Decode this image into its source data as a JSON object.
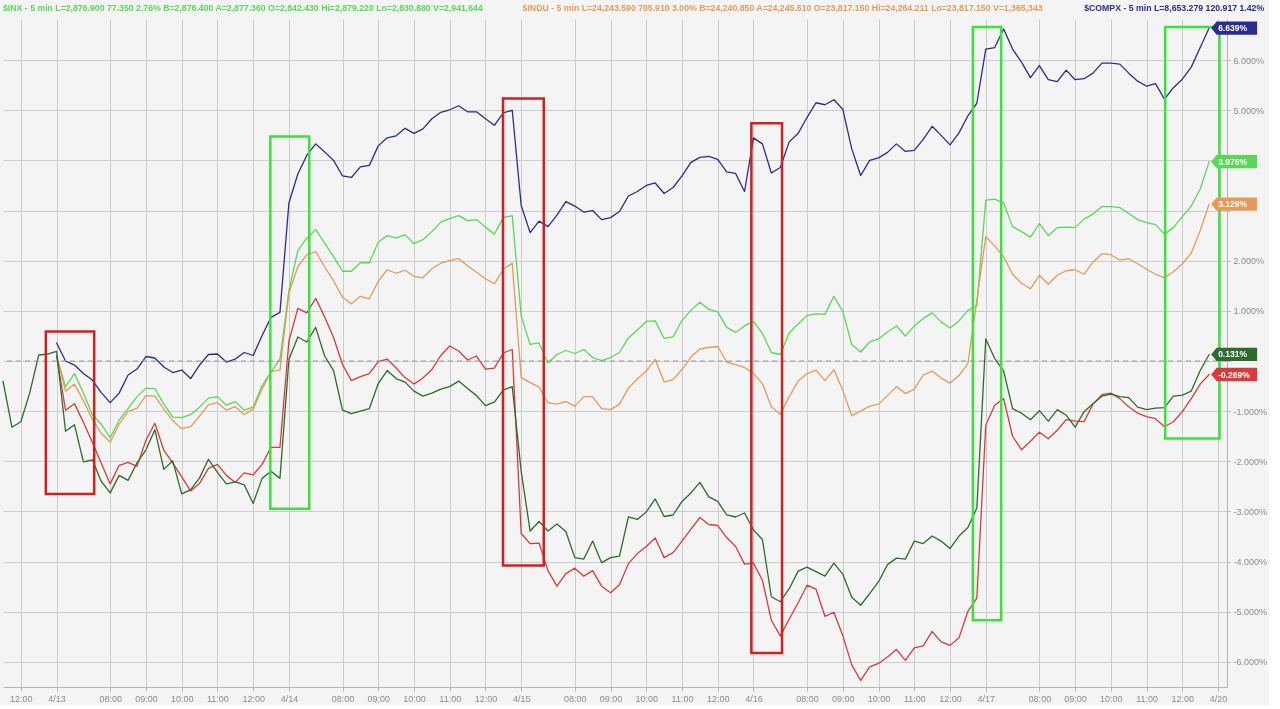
{
  "chart_data": {
    "type": "line",
    "legend": "top",
    "grid": true,
    "categories": [
      null,
      null,
      "12:00",
      null,
      null,
      null,
      "4/13",
      null,
      null,
      null,
      null,
      null,
      "08:00",
      null,
      null,
      null,
      "09:00",
      null,
      null,
      null,
      "10:00",
      null,
      null,
      null,
      "11:00",
      null,
      null,
      null,
      "12:00",
      null,
      null,
      null,
      "4/14",
      null,
      null,
      null,
      null,
      null,
      "08:00",
      null,
      null,
      null,
      "09:00",
      null,
      null,
      null,
      "10:00",
      null,
      null,
      null,
      "11:00",
      null,
      null,
      null,
      "12:00",
      null,
      null,
      null,
      "4/15",
      null,
      null,
      null,
      null,
      null,
      "08:00",
      null,
      null,
      null,
      "09:00",
      null,
      null,
      null,
      "10:00",
      null,
      null,
      null,
      "11:00",
      null,
      null,
      null,
      "12:00",
      null,
      null,
      null,
      "4/16",
      null,
      null,
      null,
      null,
      null,
      "08:00",
      null,
      null,
      null,
      "09:00",
      null,
      null,
      null,
      "10:00",
      null,
      null,
      null,
      "11:00",
      null,
      null,
      null,
      "12:00",
      null,
      null,
      null,
      "4/17",
      null,
      null,
      null,
      null,
      null,
      "08:00",
      null,
      null,
      null,
      "09:00",
      null,
      null,
      null,
      "10:00",
      null,
      null,
      null,
      "11:00",
      null,
      null,
      null,
      "12:00",
      null,
      null,
      null,
      "4/20",
      null
    ],
    "ylim": [
      -6.5,
      6.82
    ],
    "yticks": [
      {
        "value": 6,
        "label": "6.000%"
      },
      {
        "value": 5,
        "label": "5.000%"
      },
      {
        "value": 4,
        "label": null
      },
      {
        "value": 3,
        "label": null
      },
      {
        "value": 2,
        "label": "2.000%"
      },
      {
        "value": 1,
        "label": "1.000%"
      },
      {
        "value": 0,
        "label": null
      },
      {
        "value": -1,
        "label": "-1.000%"
      },
      {
        "value": -2,
        "label": "-2.000%"
      },
      {
        "value": -3,
        "label": "-3.000%"
      },
      {
        "value": -4,
        "label": "-4.000%"
      },
      {
        "value": -5,
        "label": "-5.000%"
      },
      {
        "value": -6,
        "label": "-6.000%"
      }
    ],
    "series": [
      {
        "name": "$INX - 5 min L=2,876.900 77.350 2.76% B=2,876.400 A=2,877.360 O=2,842.430 Hi=2,879.220 Lo=2,830.880 V=2,941,644",
        "color": "#58d858",
        "values": [
          null,
          null,
          null,
          null,
          null,
          null,
          0.1,
          -0.51,
          -0.25,
          -0.64,
          -1.07,
          -1.26,
          -1.53,
          -1.18,
          -0.95,
          -0.71,
          -0.54,
          -0.55,
          -0.86,
          -1.12,
          -1.13,
          -1.07,
          -0.92,
          -0.74,
          -0.71,
          -0.88,
          -0.81,
          -0.98,
          -0.92,
          -0.49,
          -0.22,
          0.04,
          1.4,
          2.2,
          2.45,
          2.62,
          2.35,
          2.08,
          1.79,
          1.79,
          1.96,
          1.96,
          2.37,
          2.5,
          2.45,
          2.52,
          2.34,
          2.42,
          2.58,
          2.77,
          2.84,
          2.9,
          2.8,
          2.82,
          2.67,
          2.53,
          2.86,
          2.9,
          0.9,
          0.33,
          0.36,
          -0.04,
          0.13,
          0.21,
          0.15,
          0.23,
          0.07,
          0.01,
          0.07,
          0.17,
          0.46,
          0.62,
          0.79,
          0.8,
          0.45,
          0.48,
          0.81,
          1.01,
          1.17,
          1.03,
          0.98,
          0.67,
          0.57,
          0.7,
          0.79,
          0.55,
          0.17,
          0.13,
          0.56,
          0.74,
          0.91,
          0.94,
          0.93,
          1.29,
          0.99,
          0.33,
          0.18,
          0.38,
          0.44,
          0.58,
          0.7,
          0.5,
          0.7,
          0.85,
          0.96,
          0.78,
          0.66,
          0.8,
          1.01,
          1.1,
          3.21,
          3.23,
          3.15,
          2.68,
          2.58,
          2.47,
          2.74,
          2.5,
          2.66,
          2.67,
          2.66,
          2.83,
          2.93,
          3.08,
          3.08,
          3.06,
          2.94,
          2.82,
          2.76,
          2.72,
          2.53,
          2.66,
          2.88,
          3.09,
          3.43,
          3.976,
          null,
          null
        ],
        "value_labels": [
          null,
          null,
          null,
          null,
          null,
          null,
          null,
          null,
          null,
          null,
          null,
          null,
          null,
          null,
          null,
          null,
          null,
          null,
          null,
          null,
          null,
          null,
          null,
          null,
          null,
          null,
          null,
          null,
          null,
          null,
          null,
          null,
          null,
          null,
          null,
          null,
          null,
          null,
          null,
          null,
          null,
          null,
          null,
          null,
          null,
          null,
          null,
          null,
          null,
          null,
          null,
          null,
          null,
          null,
          null,
          null,
          null,
          null,
          null,
          null,
          null,
          null,
          null,
          null,
          null,
          null,
          null,
          null,
          null,
          null,
          null,
          null,
          null,
          null,
          null,
          null,
          null,
          null,
          null,
          null,
          null,
          null,
          null,
          null,
          null,
          null,
          null,
          null,
          null,
          null,
          null,
          null,
          null,
          null,
          null,
          null,
          null,
          null,
          null,
          null,
          null,
          null,
          null,
          null,
          null,
          null,
          null,
          null,
          null,
          null,
          null,
          null,
          null,
          null,
          null,
          null,
          null,
          null,
          null,
          null,
          null,
          null,
          null,
          null,
          null,
          null,
          null,
          null,
          null,
          null,
          null,
          null,
          null,
          null,
          null,
          "3.976%",
          null,
          null
        ]
      },
      {
        "name": "$INDU - 5 min L=24,243.590 705.910 3.00% B=24,240.850 A=24,245.510 O=23,817.150 Hi=24,264.211 Lo=23,817.150 V=1,365,343",
        "color": "#e59a5b",
        "values": [
          null,
          null,
          null,
          null,
          null,
          null,
          0.1,
          -0.6,
          -0.46,
          -0.79,
          -1.16,
          -1.44,
          -1.62,
          -1.26,
          -1.01,
          -0.94,
          -0.69,
          -0.7,
          -0.96,
          -1.19,
          -1.35,
          -1.31,
          -1.1,
          -0.87,
          -0.83,
          -0.98,
          -0.91,
          -1.07,
          -0.96,
          -0.56,
          -0.21,
          -0.18,
          1.35,
          1.88,
          2.12,
          2.18,
          1.88,
          1.6,
          1.27,
          1.14,
          1.29,
          1.24,
          1.59,
          1.82,
          1.75,
          1.81,
          1.69,
          1.66,
          1.84,
          1.95,
          2.0,
          2.04,
          1.9,
          1.77,
          1.64,
          1.54,
          1.83,
          1.95,
          -0.33,
          -0.43,
          -0.52,
          -0.83,
          -0.86,
          -0.81,
          -0.9,
          -0.71,
          -0.71,
          -0.95,
          -0.97,
          -0.86,
          -0.54,
          -0.36,
          -0.2,
          0.03,
          -0.42,
          -0.37,
          -0.17,
          0.08,
          0.24,
          0.27,
          0.29,
          -0.02,
          -0.07,
          -0.13,
          -0.25,
          -0.45,
          -0.91,
          -1.06,
          -0.71,
          -0.4,
          -0.25,
          -0.18,
          -0.39,
          -0.17,
          -0.59,
          -1.09,
          -1.0,
          -0.9,
          -0.86,
          -0.69,
          -0.51,
          -0.65,
          -0.56,
          -0.28,
          -0.2,
          -0.34,
          -0.44,
          -0.29,
          -0.05,
          1.22,
          2.48,
          2.29,
          2.08,
          1.73,
          1.55,
          1.44,
          1.71,
          1.53,
          1.71,
          1.8,
          1.82,
          1.73,
          1.97,
          2.14,
          2.12,
          2.01,
          2.04,
          1.94,
          1.83,
          1.73,
          1.66,
          1.78,
          1.94,
          2.15,
          2.6,
          3.129,
          null,
          null
        ],
        "value_labels": [
          null,
          null,
          null,
          null,
          null,
          null,
          null,
          null,
          null,
          null,
          null,
          null,
          null,
          null,
          null,
          null,
          null,
          null,
          null,
          null,
          null,
          null,
          null,
          null,
          null,
          null,
          null,
          null,
          null,
          null,
          null,
          null,
          null,
          null,
          null,
          null,
          null,
          null,
          null,
          null,
          null,
          null,
          null,
          null,
          null,
          null,
          null,
          null,
          null,
          null,
          null,
          null,
          null,
          null,
          null,
          null,
          null,
          null,
          null,
          null,
          null,
          null,
          null,
          null,
          null,
          null,
          null,
          null,
          null,
          null,
          null,
          null,
          null,
          null,
          null,
          null,
          null,
          null,
          null,
          null,
          null,
          null,
          null,
          null,
          null,
          null,
          null,
          null,
          null,
          null,
          null,
          null,
          null,
          null,
          null,
          null,
          null,
          null,
          null,
          null,
          null,
          null,
          null,
          null,
          null,
          null,
          null,
          null,
          null,
          null,
          null,
          null,
          null,
          null,
          null,
          null,
          null,
          null,
          null,
          null,
          null,
          null,
          null,
          null,
          null,
          null,
          null,
          null,
          null,
          null,
          null,
          null,
          null,
          null,
          null,
          "3.129%",
          null,
          null
        ]
      },
      {
        "name": "$COMPX - 5 min L=8,653.279 120.917 1.42%",
        "color": "#2c2c8e",
        "values": [
          null,
          null,
          null,
          null,
          null,
          null,
          0.36,
          0.0,
          -0.08,
          -0.25,
          -0.38,
          -0.63,
          -0.83,
          -0.64,
          -0.28,
          -0.16,
          0.09,
          0.06,
          -0.12,
          -0.23,
          -0.18,
          -0.35,
          -0.08,
          0.13,
          0.14,
          -0.02,
          0.04,
          0.17,
          0.11,
          0.51,
          0.87,
          0.97,
          3.15,
          3.73,
          4.1,
          4.33,
          4.17,
          4.0,
          3.69,
          3.66,
          3.87,
          3.9,
          4.29,
          4.45,
          4.49,
          4.64,
          4.54,
          4.63,
          4.83,
          4.96,
          5.01,
          5.09,
          4.97,
          4.97,
          4.83,
          4.7,
          4.95,
          5.0,
          3.1,
          2.56,
          2.79,
          2.68,
          2.91,
          3.18,
          3.09,
          2.97,
          3.0,
          2.82,
          2.86,
          2.98,
          3.29,
          3.38,
          3.5,
          3.55,
          3.34,
          3.46,
          3.69,
          3.96,
          4.06,
          4.08,
          4.02,
          3.77,
          3.74,
          3.38,
          4.45,
          4.33,
          3.75,
          3.86,
          4.37,
          4.54,
          4.86,
          5.15,
          5.11,
          5.21,
          5.02,
          4.23,
          3.7,
          4.0,
          4.05,
          4.16,
          4.33,
          4.18,
          4.2,
          4.42,
          4.68,
          4.5,
          4.31,
          4.55,
          4.89,
          5.14,
          6.22,
          6.25,
          6.62,
          6.22,
          5.96,
          5.65,
          5.89,
          5.61,
          5.57,
          5.8,
          5.61,
          5.63,
          5.74,
          5.94,
          5.94,
          5.92,
          5.74,
          5.58,
          5.48,
          5.53,
          5.22,
          5.45,
          5.62,
          5.86,
          6.25,
          6.639,
          null,
          null
        ],
        "value_labels": [
          null,
          null,
          null,
          null,
          null,
          null,
          null,
          null,
          null,
          null,
          null,
          null,
          null,
          null,
          null,
          null,
          null,
          null,
          null,
          null,
          null,
          null,
          null,
          null,
          null,
          null,
          null,
          null,
          null,
          null,
          null,
          null,
          null,
          null,
          null,
          null,
          null,
          null,
          null,
          null,
          null,
          null,
          null,
          null,
          null,
          null,
          null,
          null,
          null,
          null,
          null,
          null,
          null,
          null,
          null,
          null,
          null,
          null,
          null,
          null,
          null,
          null,
          null,
          null,
          null,
          null,
          null,
          null,
          null,
          null,
          null,
          null,
          null,
          null,
          null,
          null,
          null,
          null,
          null,
          null,
          null,
          null,
          null,
          null,
          null,
          null,
          null,
          null,
          null,
          null,
          null,
          null,
          null,
          null,
          null,
          null,
          null,
          null,
          null,
          null,
          null,
          null,
          null,
          null,
          null,
          null,
          null,
          null,
          null,
          null,
          null,
          null,
          null,
          null,
          null,
          null,
          null,
          null,
          null,
          null,
          null,
          null,
          null,
          null,
          null,
          null,
          null,
          null,
          null,
          null,
          null,
          null,
          null,
          null,
          null,
          "6.639%",
          null,
          null
        ]
      },
      {
        "color": "#d63c3c",
        "values": [
          null,
          null,
          null,
          null,
          null,
          null,
          0.1,
          -0.98,
          -0.85,
          -1.22,
          -1.62,
          -2.04,
          -2.45,
          -2.08,
          -2.02,
          -2.1,
          -1.58,
          -1.24,
          -1.78,
          -2.03,
          -2.31,
          -2.59,
          -2.44,
          -2.14,
          -2.06,
          -2.28,
          -2.42,
          -2.23,
          -2.27,
          -2.06,
          -1.72,
          -1.72,
          0.4,
          1.05,
          0.96,
          1.25,
          0.88,
          0.47,
          -0.07,
          -0.39,
          -0.31,
          -0.25,
          -0.01,
          0.04,
          -0.14,
          -0.33,
          -0.46,
          -0.34,
          -0.17,
          0.11,
          0.3,
          0.2,
          0.02,
          0.1,
          -0.16,
          -0.14,
          0.16,
          0.23,
          -3.44,
          -3.64,
          -3.63,
          -4.18,
          -4.49,
          -4.24,
          -4.13,
          -4.29,
          -4.18,
          -4.49,
          -4.62,
          -4.46,
          -4.04,
          -3.84,
          -3.7,
          -3.53,
          -3.92,
          -3.82,
          -3.59,
          -3.35,
          -3.12,
          -3.26,
          -3.28,
          -3.52,
          -3.7,
          -4.05,
          -4.03,
          -4.37,
          -5.17,
          -5.48,
          -5.15,
          -4.82,
          -4.47,
          -4.55,
          -5.09,
          -5.01,
          -5.48,
          -6.06,
          -6.37,
          -6.1,
          -6.03,
          -5.9,
          -5.75,
          -5.97,
          -5.72,
          -5.68,
          -5.39,
          -5.6,
          -5.67,
          -5.52,
          -4.99,
          -4.73,
          -1.28,
          -0.88,
          -0.75,
          -1.5,
          -1.77,
          -1.6,
          -1.42,
          -1.55,
          -1.38,
          -1.17,
          -1.2,
          -1.21,
          -0.86,
          -0.67,
          -0.64,
          -0.75,
          -0.91,
          -1.04,
          -1.11,
          -1.15,
          -1.31,
          -1.21,
          -1.01,
          -0.75,
          -0.46,
          -0.269,
          null,
          null
        ],
        "value_labels": [
          null,
          null,
          null,
          null,
          null,
          null,
          null,
          null,
          null,
          null,
          null,
          null,
          null,
          null,
          null,
          null,
          null,
          null,
          null,
          null,
          null,
          null,
          null,
          null,
          null,
          null,
          null,
          null,
          null,
          null,
          null,
          null,
          null,
          null,
          null,
          null,
          null,
          null,
          null,
          null,
          null,
          null,
          null,
          null,
          null,
          null,
          null,
          null,
          null,
          null,
          null,
          null,
          null,
          null,
          null,
          null,
          null,
          null,
          null,
          null,
          null,
          null,
          null,
          null,
          null,
          null,
          null,
          null,
          null,
          null,
          null,
          null,
          null,
          null,
          null,
          null,
          null,
          null,
          null,
          null,
          null,
          null,
          null,
          null,
          null,
          null,
          null,
          null,
          null,
          null,
          null,
          null,
          null,
          null,
          null,
          null,
          null,
          null,
          null,
          null,
          null,
          null,
          null,
          null,
          null,
          null,
          null,
          null,
          null,
          null,
          null,
          null,
          null,
          null,
          null,
          null,
          null,
          null,
          null,
          null,
          null,
          null,
          null,
          null,
          null,
          null,
          null,
          null,
          null,
          null,
          null,
          null,
          null,
          null,
          null,
          "-0.269%",
          null,
          null
        ]
      },
      {
        "color": "#2e6b2e",
        "values": [
          -0.4,
          -1.32,
          -1.21,
          -0.63,
          0.12,
          0.14,
          0.19,
          -1.4,
          -1.27,
          -2.01,
          -1.97,
          -2.4,
          -2.63,
          -2.28,
          -2.38,
          -2.03,
          -1.77,
          -1.37,
          -2.16,
          -1.99,
          -2.65,
          -2.57,
          -2.33,
          -1.96,
          -2.22,
          -2.45,
          -2.41,
          -2.47,
          -2.84,
          -2.34,
          -2.2,
          -2.34,
          0.03,
          0.48,
          0.38,
          0.67,
          0.1,
          -0.19,
          -0.98,
          -1.05,
          -1.0,
          -0.95,
          -0.45,
          -0.19,
          -0.35,
          -0.42,
          -0.6,
          -0.7,
          -0.64,
          -0.56,
          -0.51,
          -0.4,
          -0.55,
          -0.69,
          -0.89,
          -0.82,
          -0.58,
          -0.51,
          -2.2,
          -3.39,
          -3.2,
          -3.39,
          -3.25,
          -3.4,
          -3.92,
          -3.95,
          -3.59,
          -4.02,
          -3.92,
          -3.89,
          -3.11,
          -3.16,
          -3.01,
          -2.75,
          -3.1,
          -3.07,
          -2.8,
          -2.63,
          -2.42,
          -2.71,
          -2.8,
          -3.07,
          -3.11,
          -3.03,
          -3.37,
          -3.56,
          -4.7,
          -4.8,
          -4.54,
          -4.19,
          -4.11,
          -4.2,
          -4.29,
          -4.03,
          -4.25,
          -4.71,
          -4.87,
          -4.64,
          -4.4,
          -4.06,
          -3.93,
          -3.95,
          -3.59,
          -3.64,
          -3.49,
          -3.59,
          -3.74,
          -3.49,
          -3.32,
          -2.93,
          0.44,
          0.05,
          -0.2,
          -0.95,
          -1.04,
          -1.17,
          -0.99,
          -1.2,
          -0.97,
          -1.08,
          -1.32,
          -1.01,
          -0.85,
          -0.7,
          -0.66,
          -0.71,
          -0.73,
          -0.92,
          -0.97,
          -0.94,
          -0.93,
          -0.7,
          -0.68,
          -0.6,
          -0.19,
          0.131,
          null,
          null
        ],
        "value_labels": [
          null,
          null,
          null,
          null,
          null,
          null,
          null,
          null,
          null,
          null,
          null,
          null,
          null,
          null,
          null,
          null,
          null,
          null,
          null,
          null,
          null,
          null,
          null,
          null,
          null,
          null,
          null,
          null,
          null,
          null,
          null,
          null,
          null,
          null,
          null,
          null,
          null,
          null,
          null,
          null,
          null,
          null,
          null,
          null,
          null,
          null,
          null,
          null,
          null,
          null,
          null,
          null,
          null,
          null,
          null,
          null,
          null,
          null,
          null,
          null,
          null,
          null,
          null,
          null,
          null,
          null,
          null,
          null,
          null,
          null,
          null,
          null,
          null,
          null,
          null,
          null,
          null,
          null,
          null,
          null,
          null,
          null,
          null,
          null,
          null,
          null,
          null,
          null,
          null,
          null,
          null,
          null,
          null,
          null,
          null,
          null,
          null,
          null,
          null,
          null,
          null,
          null,
          null,
          null,
          null,
          null,
          null,
          null,
          null,
          null,
          null,
          null,
          null,
          null,
          null,
          null,
          null,
          null,
          null,
          null,
          null,
          null,
          null,
          null,
          null,
          null,
          null,
          null,
          null,
          null,
          null,
          null,
          null,
          null,
          null,
          "0.131%",
          null,
          null
        ]
      }
    ],
    "ref_lines": [
      {
        "axis": "y",
        "value": 0,
        "color": "#9a9a9a",
        "line_style": "dashed"
      }
    ]
  }
}
